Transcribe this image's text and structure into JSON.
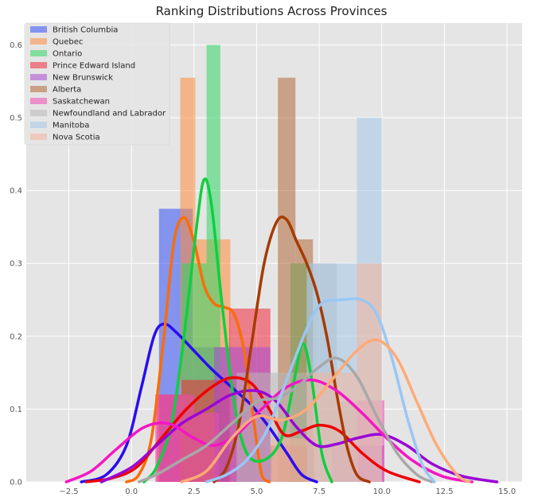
{
  "chart_data": {
    "type": "histogram-kde",
    "title": "Ranking Distributions Across Provinces",
    "xlabel": "",
    "ylabel": "",
    "xlim": [
      -4.2,
      15.6
    ],
    "ylim": [
      0,
      0.63
    ],
    "xticks": [
      -2.5,
      0.0,
      2.5,
      5.0,
      7.5,
      10.0,
      12.5,
      15.0
    ],
    "xtick_labels": [
      "−2.5",
      "0.0",
      "2.5",
      "5.0",
      "7.5",
      "10.0",
      "12.5",
      "15.0"
    ],
    "yticks": [
      0.0,
      0.1,
      0.2,
      0.3,
      0.4,
      0.5,
      0.6
    ],
    "ytick_labels": [
      "0.0",
      "0.1",
      "0.2",
      "0.3",
      "0.4",
      "0.5",
      "0.6"
    ],
    "grid": true,
    "legend_position": "top-left",
    "series": [
      {
        "name": "British Columbia",
        "hist_color": "#3351f5",
        "line_color": "#2a0cf0",
        "bins": [
          {
            "x0": 1.1,
            "x1": 2.45,
            "y": 0.375
          },
          {
            "x0": 2.45,
            "x1": 3.9,
            "y": 0.185
          }
        ],
        "kde": [
          [
            -2.0,
            0.0
          ],
          [
            -1.0,
            0.01
          ],
          [
            -0.2,
            0.05
          ],
          [
            0.4,
            0.13
          ],
          [
            0.9,
            0.2
          ],
          [
            1.3,
            0.217
          ],
          [
            1.8,
            0.205
          ],
          [
            2.5,
            0.18
          ],
          [
            3.2,
            0.155
          ],
          [
            4.0,
            0.13
          ],
          [
            4.8,
            0.105
          ],
          [
            5.5,
            0.075
          ],
          [
            6.2,
            0.04
          ],
          [
            6.8,
            0.01
          ],
          [
            7.4,
            0.0
          ]
        ]
      },
      {
        "name": "Quebec",
        "hist_color": "#fd8d3c",
        "line_color": "#f96d0a",
        "bins": [
          {
            "x0": 1.95,
            "x1": 2.55,
            "y": 0.555
          },
          {
            "x0": 2.55,
            "x1": 3.95,
            "y": 0.333
          }
        ],
        "kde": [
          [
            -0.2,
            0.0
          ],
          [
            0.3,
            0.01
          ],
          [
            0.8,
            0.06
          ],
          [
            1.3,
            0.2
          ],
          [
            1.7,
            0.33
          ],
          [
            2.1,
            0.363
          ],
          [
            2.5,
            0.33
          ],
          [
            2.9,
            0.27
          ],
          [
            3.3,
            0.245
          ],
          [
            3.7,
            0.24
          ],
          [
            4.1,
            0.23
          ],
          [
            4.5,
            0.18
          ],
          [
            4.9,
            0.08
          ],
          [
            5.2,
            0.01
          ],
          [
            5.5,
            0.0
          ]
        ]
      },
      {
        "name": "Ontario",
        "hist_color": "#33d766",
        "line_color": "#0fcf3f",
        "bins": [
          {
            "x0": 2.0,
            "x1": 2.55,
            "y": 0.3
          },
          {
            "x0": 2.55,
            "x1": 3.0,
            "y": 0.3
          },
          {
            "x0": 3.0,
            "x1": 3.55,
            "y": 0.6
          },
          {
            "x0": 6.35,
            "x1": 7.25,
            "y": 0.3
          }
        ],
        "kde": [
          [
            0.5,
            0.0
          ],
          [
            1.0,
            0.02
          ],
          [
            1.6,
            0.08
          ],
          [
            2.1,
            0.2
          ],
          [
            2.6,
            0.35
          ],
          [
            2.9,
            0.415
          ],
          [
            3.2,
            0.38
          ],
          [
            3.6,
            0.25
          ],
          [
            4.1,
            0.11
          ],
          [
            4.6,
            0.04
          ],
          [
            5.3,
            0.03
          ],
          [
            6.0,
            0.06
          ],
          [
            6.5,
            0.14
          ],
          [
            6.85,
            0.19
          ],
          [
            7.2,
            0.14
          ],
          [
            7.6,
            0.04
          ],
          [
            8.0,
            0.0
          ]
        ]
      },
      {
        "name": "Prince Edward Island",
        "hist_color": "#f02a3c",
        "line_color": "#ee0000",
        "bins": [
          {
            "x0": 1.0,
            "x1": 2.0,
            "y": 0.12
          },
          {
            "x0": 2.0,
            "x1": 3.9,
            "y": 0.14
          },
          {
            "x0": 3.9,
            "x1": 5.55,
            "y": 0.238
          },
          {
            "x0": 5.55,
            "x1": 7.3,
            "y": 0.05
          }
        ],
        "kde": [
          [
            -1.8,
            0.0
          ],
          [
            -0.8,
            0.005
          ],
          [
            0.2,
            0.02
          ],
          [
            1.2,
            0.06
          ],
          [
            2.2,
            0.1
          ],
          [
            3.2,
            0.13
          ],
          [
            4.0,
            0.143
          ],
          [
            4.8,
            0.135
          ],
          [
            5.5,
            0.1
          ],
          [
            6.1,
            0.065
          ],
          [
            6.8,
            0.07
          ],
          [
            7.5,
            0.078
          ],
          [
            8.3,
            0.07
          ],
          [
            9.2,
            0.04
          ],
          [
            10.2,
            0.015
          ],
          [
            11.5,
            0.0
          ]
        ]
      },
      {
        "name": "New Brunswick",
        "hist_color": "#a94ad3",
        "line_color": "#9a05d6",
        "bins": [
          {
            "x0": 3.3,
            "x1": 5.55,
            "y": 0.185
          },
          {
            "x0": 9.05,
            "x1": 10.1,
            "y": 0.05
          }
        ],
        "kde": [
          [
            -1.2,
            0.0
          ],
          [
            0.0,
            0.02
          ],
          [
            1.0,
            0.05
          ],
          [
            2.0,
            0.08
          ],
          [
            3.0,
            0.1
          ],
          [
            4.0,
            0.12
          ],
          [
            5.0,
            0.125
          ],
          [
            5.8,
            0.11
          ],
          [
            6.6,
            0.075
          ],
          [
            7.4,
            0.05
          ],
          [
            8.2,
            0.052
          ],
          [
            9.0,
            0.06
          ],
          [
            10.0,
            0.065
          ],
          [
            11.0,
            0.05
          ],
          [
            12.0,
            0.025
          ],
          [
            13.2,
            0.008
          ],
          [
            14.6,
            0.0
          ]
        ]
      },
      {
        "name": "Alberta",
        "hist_color": "#b26a3a",
        "line_color": "#a63a00",
        "bins": [
          {
            "x0": 5.85,
            "x1": 6.55,
            "y": 0.555
          },
          {
            "x0": 6.55,
            "x1": 7.25,
            "y": 0.333
          }
        ],
        "kde": [
          [
            3.3,
            0.0
          ],
          [
            3.8,
            0.02
          ],
          [
            4.3,
            0.08
          ],
          [
            4.8,
            0.19
          ],
          [
            5.3,
            0.3
          ],
          [
            5.8,
            0.357
          ],
          [
            6.2,
            0.36
          ],
          [
            6.6,
            0.33
          ],
          [
            7.0,
            0.3
          ],
          [
            7.4,
            0.26
          ],
          [
            7.8,
            0.2
          ],
          [
            8.2,
            0.12
          ],
          [
            8.6,
            0.05
          ],
          [
            9.0,
            0.01
          ],
          [
            9.5,
            0.0
          ]
        ]
      },
      {
        "name": "Saskatchewan",
        "hist_color": "#f24ab4",
        "line_color": "#f416c4",
        "bins": [
          {
            "x0": 0.95,
            "x1": 2.5,
            "y": 0.12
          },
          {
            "x0": 2.5,
            "x1": 3.5,
            "y": 0.095
          },
          {
            "x0": 8.0,
            "x1": 9.0,
            "y": 0.05
          },
          {
            "x0": 9.0,
            "x1": 10.1,
            "y": 0.112
          }
        ],
        "kde": [
          [
            -2.6,
            0.0
          ],
          [
            -1.6,
            0.015
          ],
          [
            -0.6,
            0.045
          ],
          [
            0.5,
            0.075
          ],
          [
            1.5,
            0.08
          ],
          [
            2.5,
            0.06
          ],
          [
            3.3,
            0.05
          ],
          [
            4.2,
            0.065
          ],
          [
            5.2,
            0.1
          ],
          [
            6.2,
            0.13
          ],
          [
            7.2,
            0.14
          ],
          [
            8.2,
            0.125
          ],
          [
            9.2,
            0.095
          ],
          [
            10.2,
            0.06
          ],
          [
            11.2,
            0.03
          ],
          [
            12.4,
            0.008
          ],
          [
            13.6,
            0.0
          ]
        ]
      },
      {
        "name": "Newfoundland and Labrador",
        "hist_color": "#b8b8b8",
        "line_color": "#a8a8a8",
        "bins": [
          {
            "x0": 4.2,
            "x1": 7.0,
            "y": 0.15
          },
          {
            "x0": 7.0,
            "x1": 8.2,
            "y": 0.3
          },
          {
            "x0": 8.2,
            "x1": 9.0,
            "y": 0.11
          }
        ],
        "kde": [
          [
            0.3,
            0.0
          ],
          [
            1.0,
            0.01
          ],
          [
            2.0,
            0.03
          ],
          [
            3.0,
            0.05
          ],
          [
            4.0,
            0.08
          ],
          [
            5.0,
            0.11
          ],
          [
            5.8,
            0.115
          ],
          [
            6.6,
            0.13
          ],
          [
            7.4,
            0.155
          ],
          [
            8.2,
            0.17
          ],
          [
            9.0,
            0.145
          ],
          [
            9.8,
            0.09
          ],
          [
            10.6,
            0.04
          ],
          [
            11.4,
            0.01
          ],
          [
            12.0,
            0.0
          ]
        ]
      },
      {
        "name": "Manitoba",
        "hist_color": "#a6c8ea",
        "line_color": "#9ac7f4",
        "bins": [
          {
            "x0": 7.0,
            "x1": 9.0,
            "y": 0.3
          },
          {
            "x0": 9.0,
            "x1": 10.0,
            "y": 0.5
          }
        ],
        "kde": [
          [
            3.0,
            0.0
          ],
          [
            3.8,
            0.01
          ],
          [
            4.6,
            0.03
          ],
          [
            5.4,
            0.07
          ],
          [
            6.2,
            0.14
          ],
          [
            7.0,
            0.21
          ],
          [
            7.6,
            0.245
          ],
          [
            8.4,
            0.25
          ],
          [
            9.2,
            0.25
          ],
          [
            9.8,
            0.23
          ],
          [
            10.4,
            0.17
          ],
          [
            11.0,
            0.09
          ],
          [
            11.6,
            0.025
          ],
          [
            12.1,
            0.0
          ]
        ]
      },
      {
        "name": "Nova Scotia",
        "hist_color": "#f5b59a",
        "line_color": "#ffaa77",
        "bins": [
          {
            "x0": 5.6,
            "x1": 7.0,
            "y": 0.06
          },
          {
            "x0": 7.0,
            "x1": 9.0,
            "y": 0.15
          },
          {
            "x0": 9.0,
            "x1": 10.0,
            "y": 0.3
          }
        ],
        "kde": [
          [
            2.0,
            0.0
          ],
          [
            3.0,
            0.015
          ],
          [
            4.0,
            0.06
          ],
          [
            5.0,
            0.09
          ],
          [
            6.0,
            0.085
          ],
          [
            7.0,
            0.1
          ],
          [
            8.0,
            0.14
          ],
          [
            9.0,
            0.18
          ],
          [
            9.8,
            0.195
          ],
          [
            10.6,
            0.17
          ],
          [
            11.4,
            0.11
          ],
          [
            12.2,
            0.05
          ],
          [
            13.0,
            0.01
          ],
          [
            13.5,
            0.0
          ]
        ]
      }
    ]
  }
}
